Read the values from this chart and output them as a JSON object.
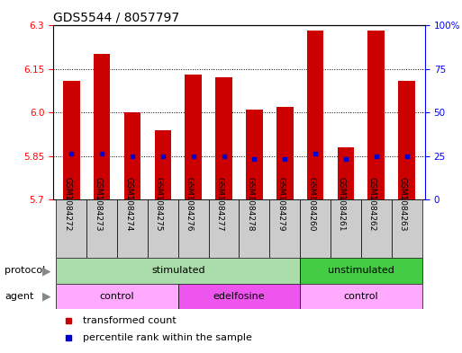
{
  "title": "GDS5544 / 8057797",
  "samples": [
    "GSM1084272",
    "GSM1084273",
    "GSM1084274",
    "GSM1084275",
    "GSM1084276",
    "GSM1084277",
    "GSM1084278",
    "GSM1084279",
    "GSM1084260",
    "GSM1084261",
    "GSM1084262",
    "GSM1084263"
  ],
  "bar_values": [
    6.11,
    6.2,
    6.0,
    5.94,
    6.13,
    6.12,
    6.01,
    6.02,
    6.28,
    5.88,
    6.28,
    6.11
  ],
  "percentile_values": [
    5.86,
    5.86,
    5.85,
    5.85,
    5.85,
    5.85,
    5.84,
    5.84,
    5.86,
    5.84,
    5.85,
    5.85
  ],
  "bar_bottom": 5.7,
  "ylim": [
    5.7,
    6.3
  ],
  "yticks_left": [
    5.7,
    5.85,
    6.0,
    6.15,
    6.3
  ],
  "yticks_right": [
    0,
    25,
    50,
    75,
    100
  ],
  "bar_color": "#cc0000",
  "percentile_color": "#0000cc",
  "grid_color": "#000000",
  "label_box_color": "#cccccc",
  "protocol_groups": [
    {
      "label": "stimulated",
      "start": 0,
      "end": 8,
      "color": "#aaddaa"
    },
    {
      "label": "unstimulated",
      "start": 8,
      "end": 12,
      "color": "#44cc44"
    }
  ],
  "agent_groups": [
    {
      "label": "control",
      "start": 0,
      "end": 4,
      "color": "#ffaaff"
    },
    {
      "label": "edelfosine",
      "start": 4,
      "end": 8,
      "color": "#ee55ee"
    },
    {
      "label": "control",
      "start": 8,
      "end": 12,
      "color": "#ffaaff"
    }
  ],
  "legend_items": [
    {
      "label": "transformed count",
      "color": "#cc0000"
    },
    {
      "label": "percentile rank within the sample",
      "color": "#0000cc"
    }
  ],
  "title_fontsize": 10,
  "tick_fontsize": 7.5,
  "label_fontsize": 8,
  "sample_fontsize": 6.5
}
